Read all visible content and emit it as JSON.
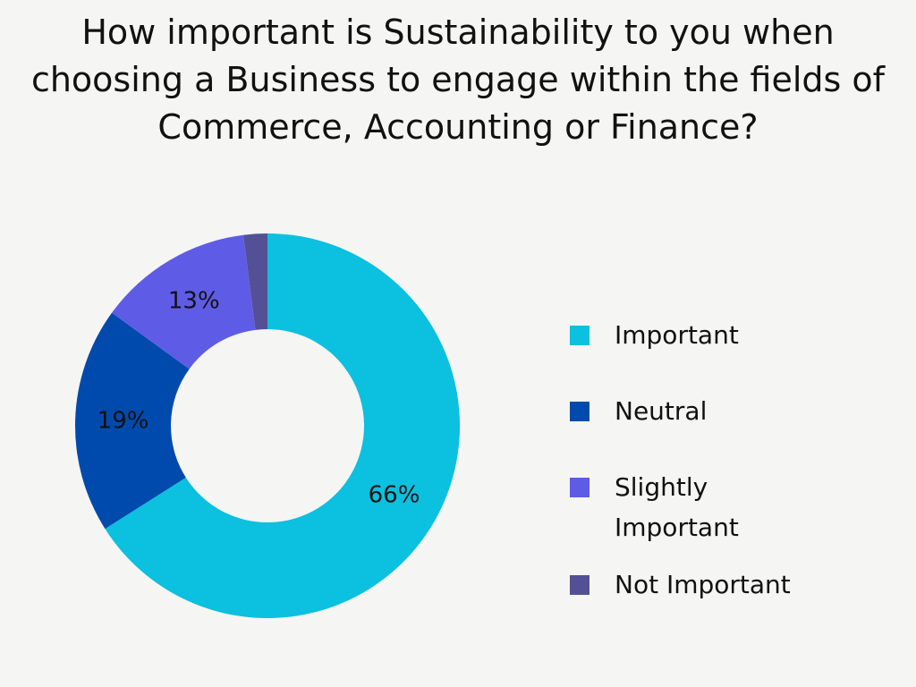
{
  "chart_data": {
    "type": "donut",
    "title": "How important is Sustainability to you when choosing a Business to engage within the fields of Commerce, Accounting or Finance?",
    "categories": [
      "Important",
      "Neutral",
      "Slightly Important",
      "Not Important"
    ],
    "values": [
      66,
      19,
      13,
      2
    ],
    "value_labels": [
      "66%",
      "19%",
      "13%",
      null
    ],
    "colors": [
      "#0cc0df",
      "#004aad",
      "#5e5ce6",
      "#545096"
    ],
    "legend": "right"
  }
}
